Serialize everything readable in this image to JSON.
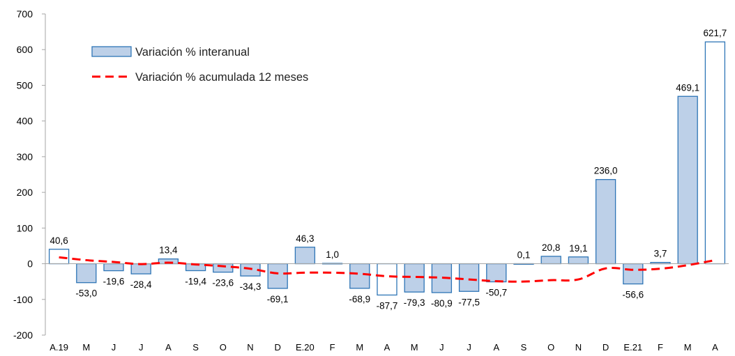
{
  "chart_data": {
    "type": "bar",
    "categories": [
      "A.19",
      "M",
      "J",
      "J",
      "A",
      "S",
      "O",
      "N",
      "D",
      "E.20",
      "F",
      "M",
      "A",
      "M",
      "J",
      "J",
      "A",
      "S",
      "O",
      "N",
      "D",
      "E.21",
      "F",
      "M",
      "A"
    ],
    "series": [
      {
        "name": "Variación % interanual",
        "type": "bar",
        "values": [
          40.6,
          -53.0,
          -19.6,
          -28.4,
          13.4,
          -19.4,
          -23.6,
          -34.3,
          -69.1,
          46.3,
          1.0,
          -68.9,
          -87.7,
          -79.3,
          -80.9,
          -77.5,
          -50.7,
          0.1,
          20.8,
          19.1,
          236.0,
          -56.6,
          3.7,
          469.1,
          621.7
        ],
        "labels": [
          "40,6",
          "-53,0",
          "-19,6",
          "-28,4",
          "13,4",
          "-19,4",
          "-23,6",
          "-34,3",
          "-69,1",
          "46,3",
          "1,0",
          "-68,9",
          "-87,7",
          "-79,3",
          "-80,9",
          "-77,5",
          "-50,7",
          "0,1",
          "20,8",
          "19,1",
          "236,0",
          "-56,6",
          "3,7",
          "469,1",
          "621,7"
        ],
        "highlighted": [
          0,
          12,
          24
        ],
        "fill_color": "#bdd0e8",
        "highlight_fill_color": "#ffffff",
        "stroke_color": "#2e75b6"
      },
      {
        "name": "Variación % acumulada 12 meses",
        "type": "line",
        "style": "dashed",
        "color": "#ff0000",
        "values": [
          18,
          10,
          5,
          -1,
          3,
          -2,
          -7,
          -14,
          -27,
          -25,
          -25,
          -28,
          -35,
          -37,
          -39,
          -44,
          -49,
          -50,
          -46,
          -44,
          -13,
          -17,
          -14,
          -4,
          10
        ]
      }
    ],
    "ylim": [
      -200,
      700
    ],
    "yticks": [
      -200,
      -100,
      0,
      100,
      200,
      300,
      400,
      500,
      600,
      700
    ],
    "ytick_labels": [
      "-200",
      "-100",
      "0",
      "100",
      "200",
      "300",
      "400",
      "500",
      "600",
      "700"
    ],
    "title": "",
    "xlabel": "",
    "ylabel": "",
    "grid": false,
    "legend_position": "top-left"
  }
}
